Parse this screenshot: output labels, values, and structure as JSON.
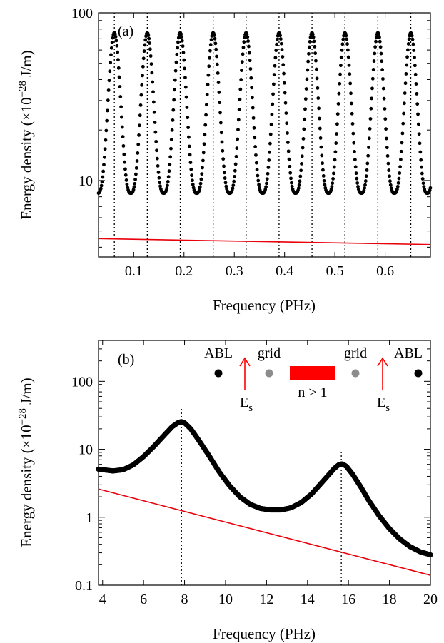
{
  "chart_data": [
    {
      "panel": "(a)",
      "type": "scatter",
      "xlabel": "Frequency (PHz)",
      "ylabel_main": "Energy density (×10",
      "ylabel_exp": "−28",
      "ylabel_unit": " J/m)",
      "xlim": [
        0.03,
        0.69
      ],
      "ylim": [
        3.5,
        100
      ],
      "yscale": "log",
      "xticks": [
        0.1,
        0.2,
        0.3,
        0.4,
        0.5,
        0.6
      ],
      "xtick_labels": [
        "0.1",
        "0.2",
        "0.3",
        "0.4",
        "0.5",
        "0.6"
      ],
      "yticks_major": [
        10,
        100
      ],
      "ytick_labels": [
        "10",
        "100"
      ],
      "yticks_minor": [
        4,
        5,
        6,
        7,
        8,
        9,
        20,
        30,
        40,
        50,
        60,
        70,
        80,
        90
      ],
      "resonance_period": 0.0655,
      "resonances": [
        0.0615,
        0.127,
        0.1925,
        0.258,
        0.3235,
        0.389,
        0.4545,
        0.52,
        0.5855,
        0.651
      ],
      "series": [
        {
          "kind": "periodic-peaks",
          "peak": 76,
          "trough": 8.4,
          "x_start": 0.03,
          "x_end": 0.69,
          "n_points": 560
        },
        {
          "kind": "red-line",
          "x": [
            0.03,
            0.69
          ],
          "y": [
            4.5,
            4.15
          ]
        }
      ]
    },
    {
      "panel": "(b)",
      "type": "scatter",
      "xlabel": "Frequency (PHz)",
      "ylabel_main": "Energy density (×10",
      "ylabel_exp": "−28",
      "ylabel_unit": " J/m)",
      "xlim": [
        3.8,
        20
      ],
      "ylim": [
        0.1,
        400
      ],
      "yscale": "log",
      "xticks": [
        4,
        6,
        8,
        10,
        12,
        14,
        16,
        18,
        20
      ],
      "xtick_labels": [
        "4",
        "6",
        "8",
        "10",
        "12",
        "14",
        "16",
        "18",
        "20"
      ],
      "yticks_major": [
        0.1,
        1,
        10,
        100
      ],
      "ytick_labels": [
        "0.1",
        "1",
        "10",
        "100"
      ],
      "resonances": [
        7.85,
        15.65
      ],
      "series": [
        {
          "kind": "curve",
          "x": [
            3.8,
            4.5,
            5.0,
            5.5,
            6.0,
            6.5,
            7.0,
            7.4,
            7.7,
            7.85,
            8.0,
            8.3,
            8.7,
            9.2,
            9.7,
            10.2,
            10.7,
            11.2,
            11.7,
            12.2,
            12.7,
            13.2,
            13.7,
            14.2,
            14.6,
            15.0,
            15.3,
            15.55,
            15.7,
            15.9,
            16.2,
            16.6,
            17.0,
            17.5,
            18.0,
            18.5,
            19.0,
            19.5,
            20.0
          ],
          "y": [
            5.1,
            4.8,
            5.0,
            5.9,
            7.8,
            11.0,
            16.0,
            21.5,
            24.8,
            25.5,
            24.5,
            20.0,
            13.5,
            8.0,
            4.6,
            2.9,
            2.0,
            1.55,
            1.35,
            1.28,
            1.28,
            1.38,
            1.65,
            2.2,
            3.0,
            4.1,
            5.2,
            6.0,
            6.1,
            5.6,
            4.3,
            2.8,
            1.75,
            1.05,
            0.68,
            0.48,
            0.37,
            0.31,
            0.28
          ],
          "n_points": 650
        },
        {
          "kind": "red-line",
          "x": [
            3.8,
            20
          ],
          "y": [
            2.6,
            0.14
          ]
        }
      ],
      "inset": {
        "abl_left": "ABL",
        "grid_left": "grid",
        "grid_right": "grid",
        "abl_right": "ABL",
        "slab_label": "n > 1",
        "source_left": "E",
        "source_left_sub": "s",
        "source_right": "E",
        "source_right_sub": "s"
      }
    }
  ]
}
